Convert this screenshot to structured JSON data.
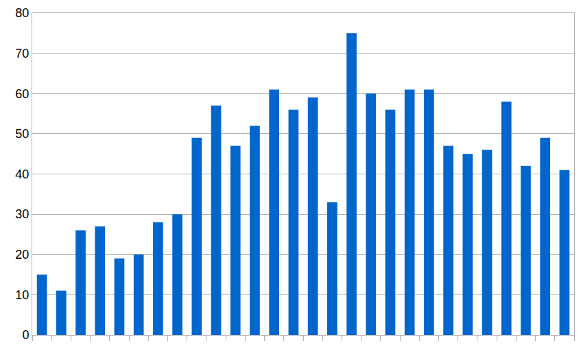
{
  "chart_data": {
    "type": "bar",
    "categories": [
      null,
      null,
      null,
      null,
      null,
      null,
      null,
      null,
      null,
      null,
      null,
      null,
      null,
      null,
      null,
      null,
      null,
      null,
      null,
      null,
      null,
      null,
      null,
      null,
      null,
      null,
      null,
      null
    ],
    "values": [
      15,
      11,
      26,
      27,
      19,
      20,
      28,
      30,
      49,
      57,
      47,
      52,
      61,
      56,
      59,
      33,
      75,
      60,
      56,
      61,
      61,
      47,
      45,
      46,
      58,
      42,
      49,
      41
    ],
    "color": "#0066cc",
    "ylim": [
      0,
      80
    ],
    "yticks": [
      0,
      10,
      20,
      30,
      40,
      50,
      60,
      70,
      80
    ],
    "grid": true,
    "tick_labels": "y"
  }
}
